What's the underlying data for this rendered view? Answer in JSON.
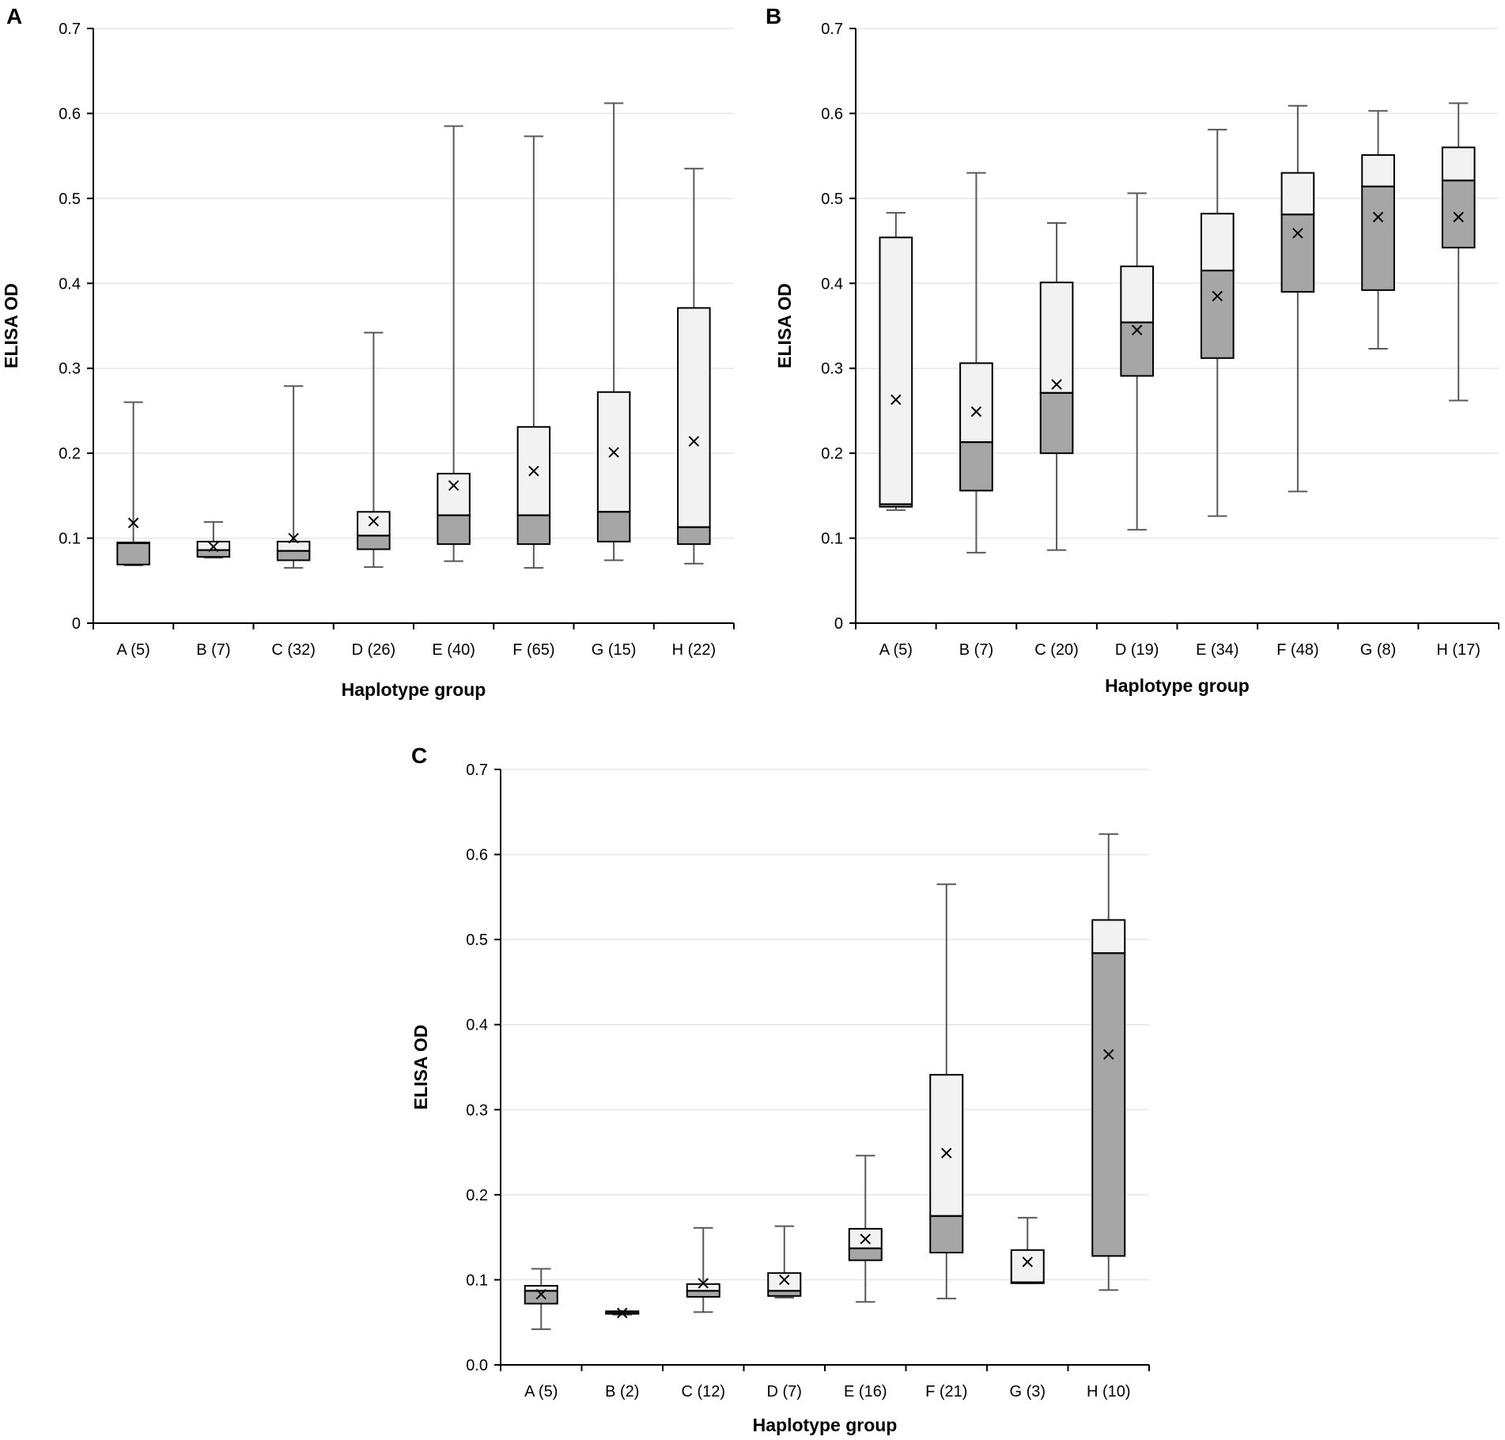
{
  "chart_data": [
    {
      "panel": "A",
      "type": "boxplot",
      "ylabel": "ELISA OD",
      "xlabel": "Haplotype group",
      "ylim": [
        0,
        0.7
      ],
      "yticks": [
        "0",
        "0.1",
        "0.2",
        "0.3",
        "0.4",
        "0.5",
        "0.6",
        "0.7"
      ],
      "categories": [
        "A (5)",
        "B (7)",
        "C (32)",
        "D (26)",
        "E (40)",
        "F (65)",
        "G (15)",
        "H (22)"
      ],
      "boxes": [
        {
          "min": 0.068,
          "q1": 0.069,
          "median": 0.094,
          "q3": 0.095,
          "max": 0.26,
          "mean": 0.118
        },
        {
          "min": 0.077,
          "q1": 0.078,
          "median": 0.086,
          "q3": 0.096,
          "max": 0.119,
          "mean": 0.09
        },
        {
          "min": 0.065,
          "q1": 0.074,
          "median": 0.085,
          "q3": 0.096,
          "max": 0.279,
          "mean": 0.1
        },
        {
          "min": 0.066,
          "q1": 0.087,
          "median": 0.103,
          "q3": 0.131,
          "max": 0.342,
          "mean": 0.12
        },
        {
          "min": 0.073,
          "q1": 0.093,
          "median": 0.127,
          "q3": 0.176,
          "max": 0.585,
          "mean": 0.162
        },
        {
          "min": 0.065,
          "q1": 0.093,
          "median": 0.127,
          "q3": 0.231,
          "max": 0.573,
          "mean": 0.179
        },
        {
          "min": 0.074,
          "q1": 0.096,
          "median": 0.131,
          "q3": 0.272,
          "max": 0.612,
          "mean": 0.201
        },
        {
          "min": 0.07,
          "q1": 0.093,
          "median": 0.113,
          "q3": 0.371,
          "max": 0.535,
          "mean": 0.214
        }
      ]
    },
    {
      "panel": "B",
      "type": "boxplot",
      "ylabel": "ELISA OD",
      "xlabel": "Haplotype group",
      "ylim": [
        0,
        0.7
      ],
      "yticks": [
        "0",
        "0.1",
        "0.2",
        "0.3",
        "0.4",
        "0.5",
        "0.6",
        "0.7"
      ],
      "categories": [
        "A (5)",
        "B (7)",
        "C (20)",
        "D (19)",
        "E (34)",
        "F (48)",
        "G (8)",
        "H (17)"
      ],
      "boxes": [
        {
          "min": 0.133,
          "q1": 0.137,
          "median": 0.14,
          "q3": 0.454,
          "max": 0.483,
          "mean": 0.263
        },
        {
          "min": 0.083,
          "q1": 0.156,
          "median": 0.213,
          "q3": 0.306,
          "max": 0.53,
          "mean": 0.249
        },
        {
          "min": 0.086,
          "q1": 0.2,
          "median": 0.271,
          "q3": 0.401,
          "max": 0.471,
          "mean": 0.281
        },
        {
          "min": 0.11,
          "q1": 0.291,
          "median": 0.354,
          "q3": 0.42,
          "max": 0.506,
          "mean": 0.345
        },
        {
          "min": 0.126,
          "q1": 0.312,
          "median": 0.415,
          "q3": 0.482,
          "max": 0.581,
          "mean": 0.385
        },
        {
          "min": 0.155,
          "q1": 0.39,
          "median": 0.481,
          "q3": 0.53,
          "max": 0.609,
          "mean": 0.459
        },
        {
          "min": 0.323,
          "q1": 0.392,
          "median": 0.514,
          "q3": 0.551,
          "max": 0.603,
          "mean": 0.478
        },
        {
          "min": 0.262,
          "q1": 0.442,
          "median": 0.521,
          "q3": 0.56,
          "max": 0.612,
          "mean": 0.478
        }
      ]
    },
    {
      "panel": "C",
      "type": "boxplot",
      "ylabel": "ELISA OD",
      "xlabel": "Haplotype group",
      "ylim": [
        0,
        0.7
      ],
      "yticks": [
        "0.0",
        "0.1",
        "0.2",
        "0.3",
        "0.4",
        "0.5",
        "0.6",
        "0.7"
      ],
      "categories": [
        "A (5)",
        "B (2)",
        "C (12)",
        "D (7)",
        "E (16)",
        "F (21)",
        "G (3)",
        "H (10)"
      ],
      "boxes": [
        {
          "min": 0.042,
          "q1": 0.072,
          "median": 0.087,
          "q3": 0.093,
          "max": 0.113,
          "mean": 0.083
        },
        {
          "min": 0.059,
          "q1": 0.06,
          "median": 0.061,
          "q3": 0.063,
          "max": 0.063,
          "mean": 0.061
        },
        {
          "min": 0.062,
          "q1": 0.08,
          "median": 0.087,
          "q3": 0.095,
          "max": 0.161,
          "mean": 0.096
        },
        {
          "min": 0.079,
          "q1": 0.081,
          "median": 0.087,
          "q3": 0.108,
          "max": 0.163,
          "mean": 0.1
        },
        {
          "min": 0.074,
          "q1": 0.123,
          "median": 0.137,
          "q3": 0.16,
          "max": 0.246,
          "mean": 0.148
        },
        {
          "min": 0.078,
          "q1": 0.132,
          "median": 0.175,
          "q3": 0.341,
          "max": 0.565,
          "mean": 0.249
        },
        {
          "min": 0.096,
          "q1": 0.096,
          "median": 0.097,
          "q3": 0.135,
          "max": 0.173,
          "mean": 0.121
        },
        {
          "min": 0.088,
          "q1": 0.128,
          "median": 0.484,
          "q3": 0.523,
          "max": 0.624,
          "mean": 0.365
        }
      ]
    }
  ]
}
